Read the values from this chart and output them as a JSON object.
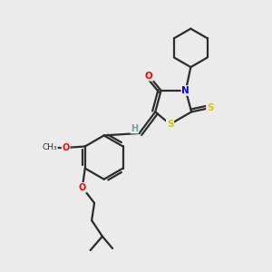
{
  "bg_color": "#ebebeb",
  "bond_color": "#2c2c2c",
  "atom_colors": {
    "O": "#ff0000",
    "N": "#0000ff",
    "S": "#cccc00",
    "H": "#70a0a0",
    "C": "#2c2c2c"
  }
}
